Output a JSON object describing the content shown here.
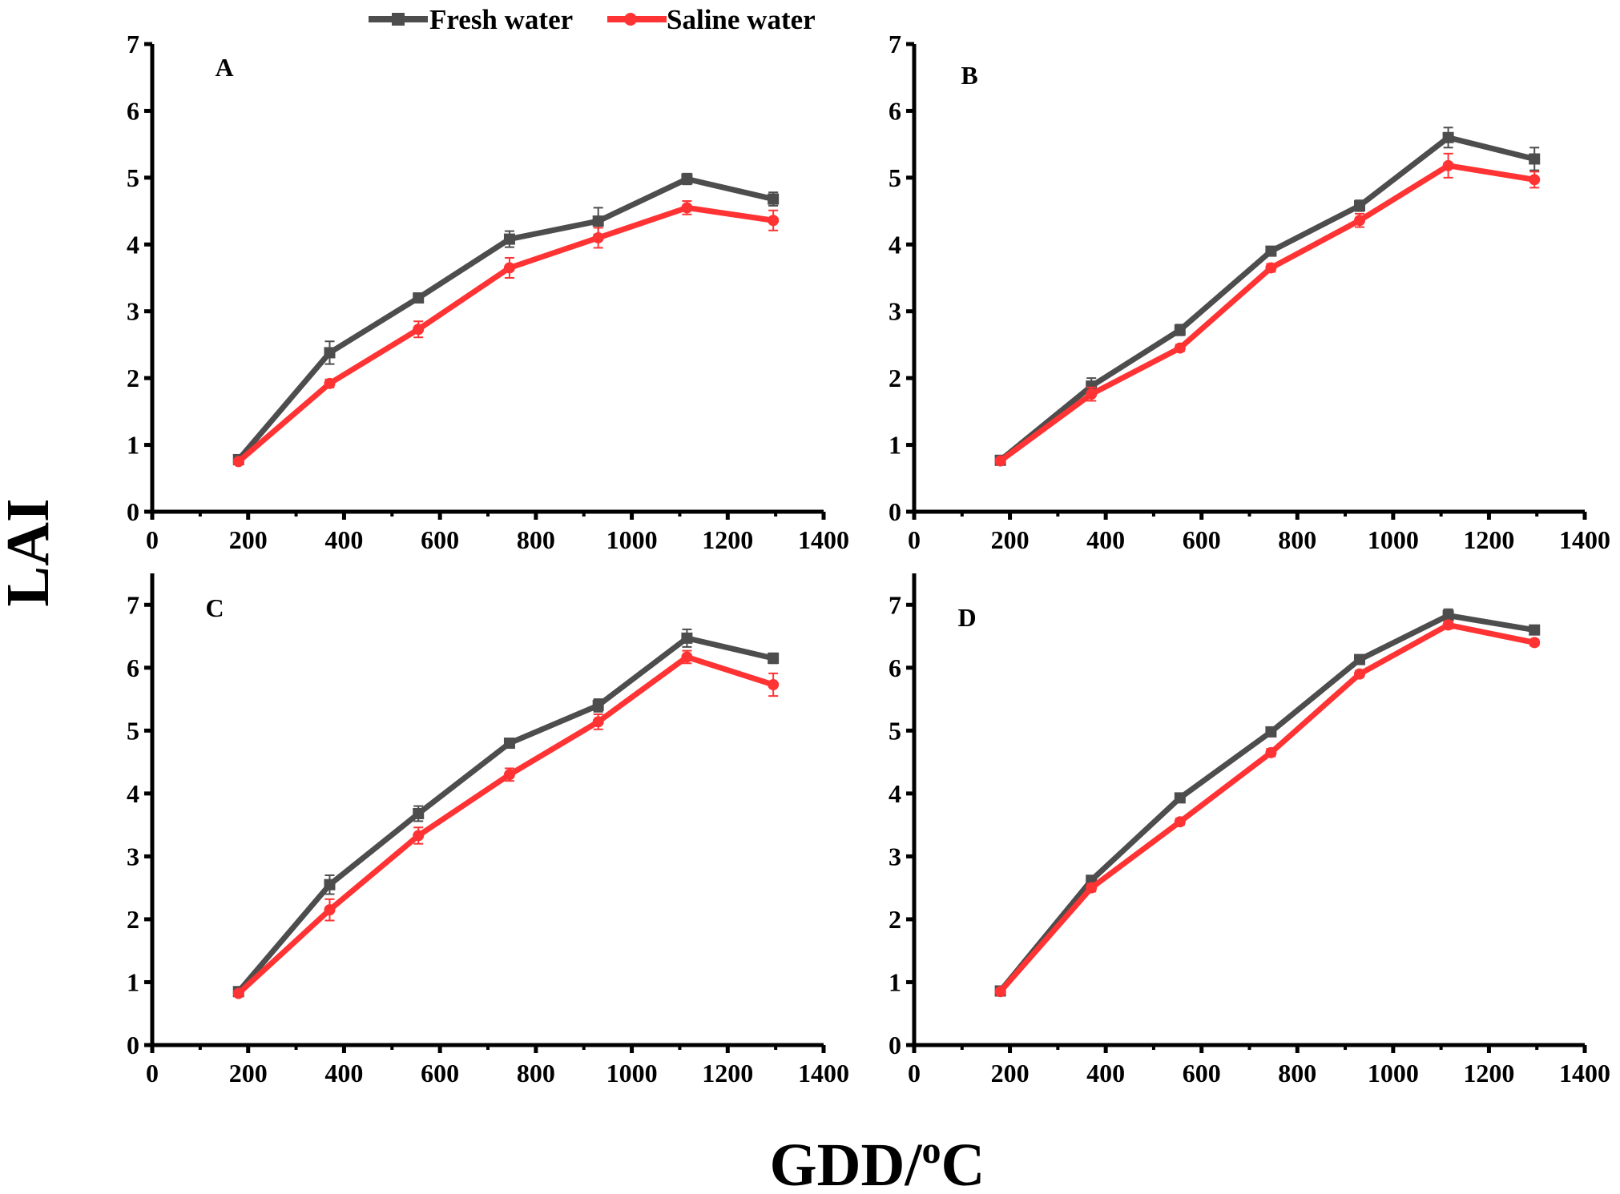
{
  "legend": {
    "items": [
      {
        "label": "Fresh water",
        "color": "#4d4d4d",
        "marker": "square"
      },
      {
        "label": "Saline water",
        "color": "#ff3333",
        "marker": "circle"
      }
    ]
  },
  "axis_labels": {
    "y": "LAI",
    "x_main": "GDD/",
    "x_sup": "o",
    "x_unit": "C"
  },
  "chart_data": [
    {
      "type": "line",
      "panel": "A",
      "x": [
        180,
        370,
        555,
        745,
        930,
        1115,
        1295
      ],
      "xlim": [
        0,
        1400
      ],
      "xticks": [
        0,
        200,
        400,
        600,
        800,
        1000,
        1200,
        1400
      ],
      "ylim": [
        0,
        7
      ],
      "yticks": [
        0,
        1,
        2,
        3,
        4,
        5,
        6,
        7
      ],
      "xlabel": "GDD/oC",
      "ylabel": "LAI",
      "series": [
        {
          "name": "Fresh water",
          "values": [
            0.78,
            2.38,
            3.2,
            4.08,
            4.35,
            4.98,
            4.68
          ],
          "errors": [
            0.05,
            0.17,
            0.06,
            0.12,
            0.2,
            0.08,
            0.1
          ]
        },
        {
          "name": "Saline water",
          "values": [
            0.75,
            1.92,
            2.73,
            3.65,
            4.1,
            4.55,
            4.36
          ],
          "errors": [
            0.04,
            0.06,
            0.12,
            0.15,
            0.15,
            0.1,
            0.15
          ]
        }
      ]
    },
    {
      "type": "line",
      "panel": "B",
      "x": [
        180,
        370,
        555,
        745,
        930,
        1115,
        1295
      ],
      "xlim": [
        0,
        1400
      ],
      "xticks": [
        0,
        200,
        400,
        600,
        800,
        1000,
        1200,
        1400
      ],
      "ylim": [
        0,
        7
      ],
      "yticks": [
        0,
        1,
        2,
        3,
        4,
        5,
        6,
        7
      ],
      "xlabel": "GDD/oC",
      "ylabel": "LAI",
      "series": [
        {
          "name": "Fresh water",
          "values": [
            0.77,
            1.88,
            2.72,
            3.9,
            4.58,
            5.6,
            5.28
          ],
          "errors": [
            0.04,
            0.12,
            0.08,
            0.06,
            0.08,
            0.15,
            0.17
          ]
        },
        {
          "name": "Saline water",
          "values": [
            0.76,
            1.76,
            2.45,
            3.65,
            4.36,
            5.18,
            4.97
          ],
          "errors": [
            0.04,
            0.1,
            0.05,
            0.06,
            0.1,
            0.18,
            0.12
          ]
        }
      ]
    },
    {
      "type": "line",
      "panel": "C",
      "x": [
        180,
        370,
        555,
        745,
        930,
        1115,
        1295
      ],
      "xlim": [
        0,
        1400
      ],
      "xticks": [
        0,
        200,
        400,
        600,
        800,
        1000,
        1200,
        1400
      ],
      "ylim": [
        0,
        7.5
      ],
      "yticks": [
        0,
        1,
        2,
        3,
        4,
        5,
        6,
        7
      ],
      "xlabel": "GDD/oC",
      "ylabel": "LAI",
      "series": [
        {
          "name": "Fresh water",
          "values": [
            0.85,
            2.55,
            3.68,
            4.8,
            5.4,
            6.47,
            6.15
          ],
          "errors": [
            0.04,
            0.15,
            0.12,
            0.05,
            0.1,
            0.14,
            0.08
          ]
        },
        {
          "name": "Saline water",
          "values": [
            0.82,
            2.15,
            3.33,
            4.3,
            5.14,
            6.17,
            5.73
          ],
          "errors": [
            0.04,
            0.17,
            0.13,
            0.1,
            0.12,
            0.1,
            0.18
          ]
        }
      ]
    },
    {
      "type": "line",
      "panel": "D",
      "x": [
        180,
        370,
        555,
        745,
        930,
        1115,
        1295
      ],
      "xlim": [
        0,
        1400
      ],
      "xticks": [
        0,
        200,
        400,
        600,
        800,
        1000,
        1200,
        1400
      ],
      "ylim": [
        0,
        7.5
      ],
      "yticks": [
        0,
        1,
        2,
        3,
        4,
        5,
        6,
        7
      ],
      "xlabel": "GDD/oC",
      "ylabel": "LAI",
      "series": [
        {
          "name": "Fresh water",
          "values": [
            0.86,
            2.62,
            3.93,
            4.98,
            6.13,
            6.83,
            6.6
          ],
          "errors": [
            0.04,
            0.06,
            0.07,
            0.05,
            0.05,
            0.1,
            0.05
          ]
        },
        {
          "name": "Saline water",
          "values": [
            0.85,
            2.5,
            3.55,
            4.65,
            5.9,
            6.68,
            6.4
          ],
          "errors": [
            0.04,
            0.06,
            0.05,
            0.06,
            0.05,
            0.06,
            0.05
          ]
        }
      ]
    }
  ]
}
